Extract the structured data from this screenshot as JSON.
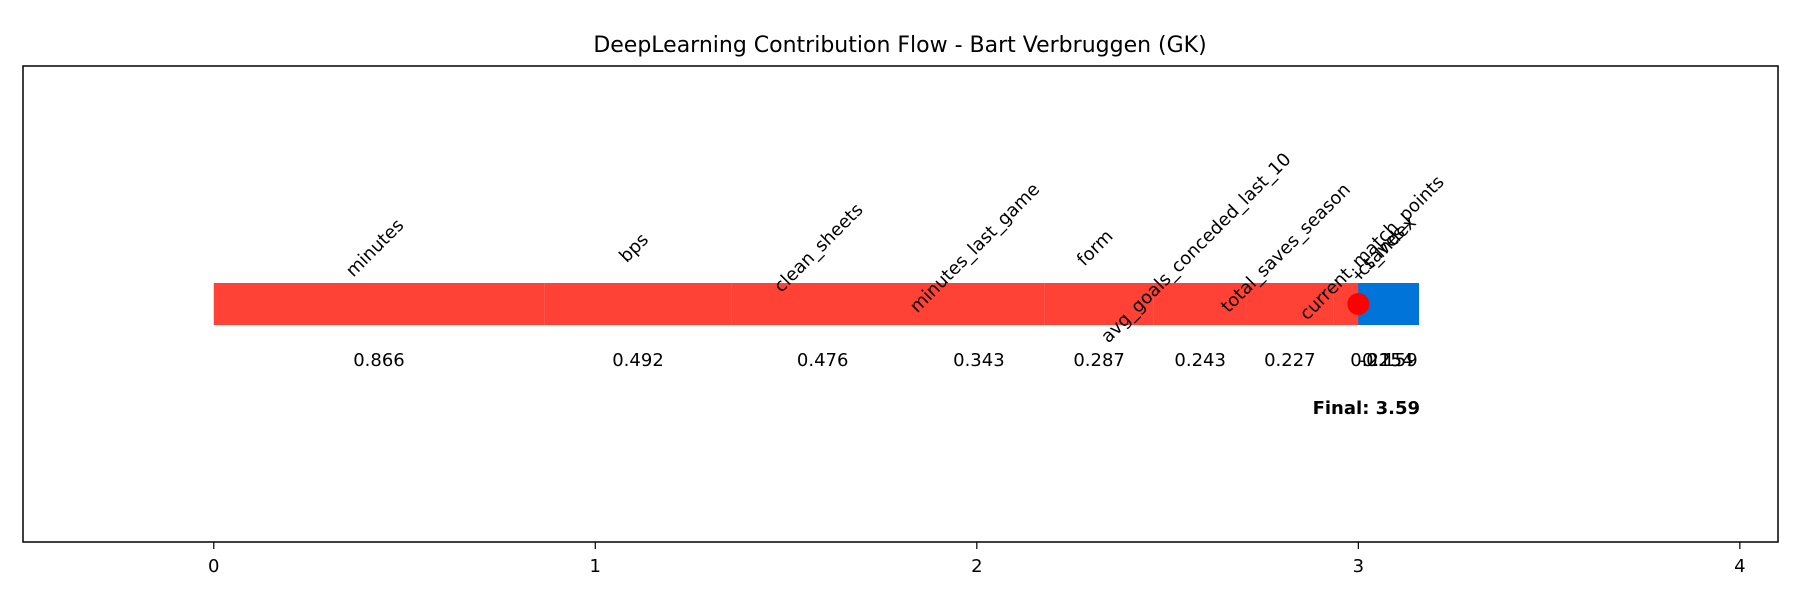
{
  "chart_data": {
    "type": "bar",
    "title": "DeepLearning Contribution Flow - Bart Verbruggen (GK)",
    "xlim": [
      -0.5,
      4.1
    ],
    "x_ticks": [
      "0",
      "1",
      "2",
      "3",
      "4"
    ],
    "x_tick_values": [
      0,
      1,
      2,
      3,
      4
    ],
    "grid": false,
    "legend": "none",
    "features": [
      {
        "name": "minutes",
        "value": 0.866,
        "value_label": "0.866",
        "color": "#ff4136"
      },
      {
        "name": "bps",
        "value": 0.492,
        "value_label": "0.492",
        "color": "#ff4136"
      },
      {
        "name": "clean_sheets",
        "value": 0.476,
        "value_label": "0.476",
        "color": "#ff4136"
      },
      {
        "name": "minutes_last_game",
        "value": 0.343,
        "value_label": "0.343",
        "color": "#ff4136"
      },
      {
        "name": "form",
        "value": 0.287,
        "value_label": "0.287",
        "color": "#ff4136"
      },
      {
        "name": "avg_goals_conceded_last_10",
        "value": 0.243,
        "value_label": "0.243",
        "color": "#ff4136"
      },
      {
        "name": "total_saves_season",
        "value": 0.227,
        "value_label": "0.227",
        "color": "#ff4136"
      },
      {
        "name": "current_match_points",
        "value": 0.225,
        "value_label": "0.225",
        "color": "#ff4136"
      },
      {
        "name": "ict_index",
        "value": -0.159,
        "value_label": "-0.159",
        "color": "#0074d9"
      },
      {
        "name": "saves",
        "value": 0.154,
        "value_label": "0.154",
        "color": "#0074d9"
      }
    ],
    "final_label": "Final: 3.59",
    "final_value": 3.59,
    "marker_color": "#ff0000",
    "positive_color": "#ff4136",
    "negative_color": "#0074d9"
  }
}
